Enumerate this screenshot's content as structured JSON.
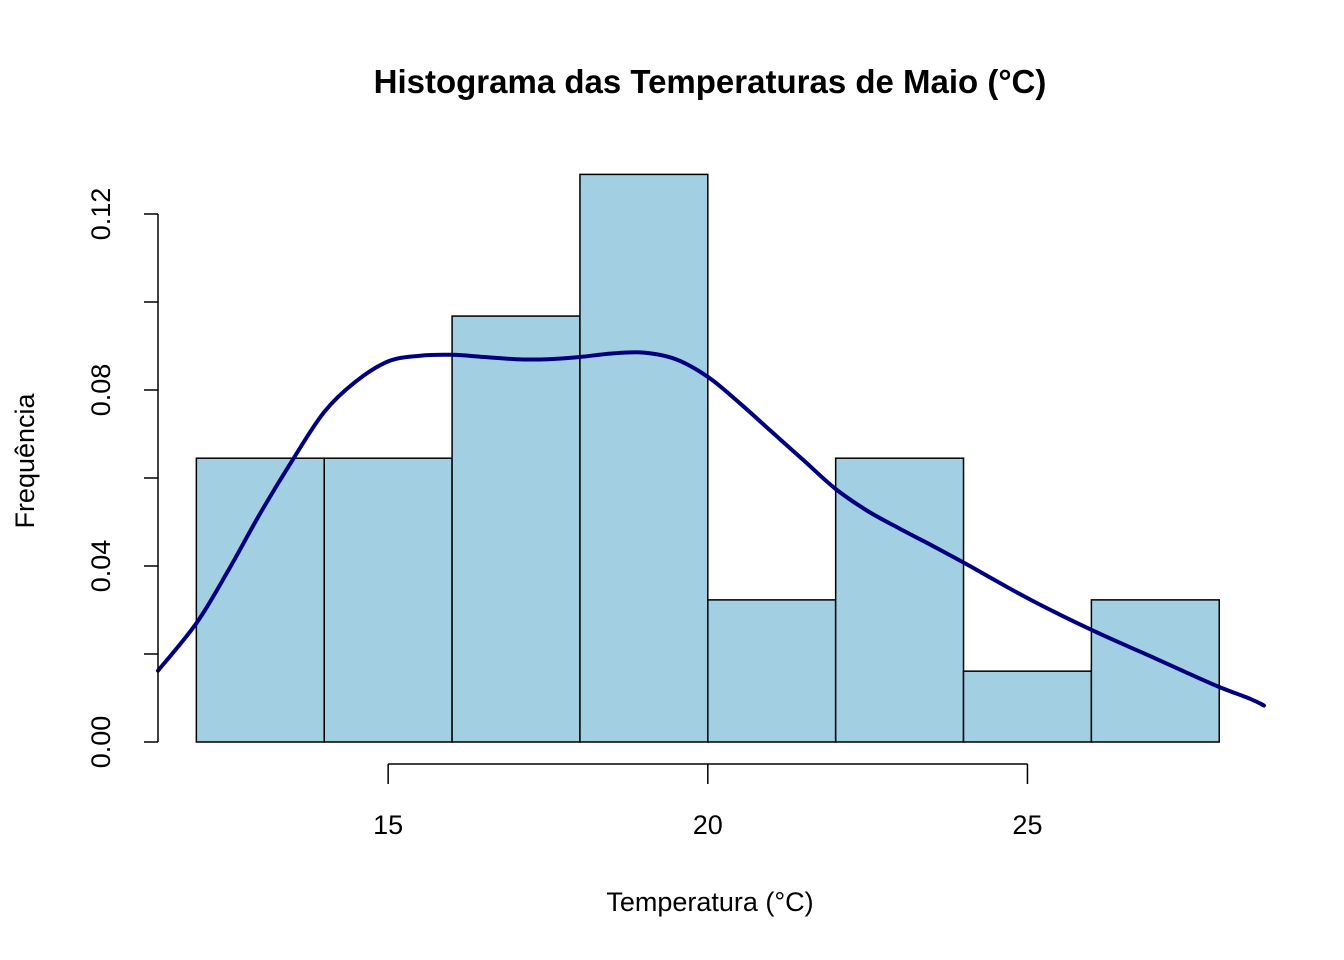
{
  "chart_data": {
    "type": "bar",
    "title": "Histograma das Temperaturas de Maio (°C)",
    "xlabel": "Temperatura (°C)",
    "ylabel": "Frequência",
    "bins": [
      {
        "x0": 12,
        "x1": 14,
        "density": 0.0645
      },
      {
        "x0": 14,
        "x1": 16,
        "density": 0.0645
      },
      {
        "x0": 16,
        "x1": 18,
        "density": 0.0968
      },
      {
        "x0": 18,
        "x1": 20,
        "density": 0.129
      },
      {
        "x0": 20,
        "x1": 22,
        "density": 0.0323
      },
      {
        "x0": 22,
        "x1": 24,
        "density": 0.0645
      },
      {
        "x0": 24,
        "x1": 26,
        "density": 0.0161
      },
      {
        "x0": 26,
        "x1": 28,
        "density": 0.0323
      }
    ],
    "density_curve": {
      "x": [
        11.4,
        12.0,
        12.5,
        13.0,
        13.5,
        14.0,
        14.5,
        15.0,
        15.5,
        16.0,
        16.5,
        17.0,
        17.5,
        18.0,
        18.5,
        19.0,
        19.5,
        20.0,
        20.5,
        21.0,
        21.5,
        22.0,
        22.5,
        23.0,
        23.5,
        24.0,
        24.5,
        25.0,
        25.5,
        26.0,
        26.5,
        27.0,
        27.5,
        28.0,
        28.5,
        28.7
      ],
      "y": [
        0.0162,
        0.027,
        0.039,
        0.052,
        0.064,
        0.075,
        0.082,
        0.0865,
        0.0878,
        0.088,
        0.0875,
        0.087,
        0.087,
        0.0875,
        0.0883,
        0.0885,
        0.087,
        0.083,
        0.077,
        0.0705,
        0.064,
        0.0575,
        0.0525,
        0.0485,
        0.0447,
        0.0408,
        0.0367,
        0.0327,
        0.029,
        0.0255,
        0.0222,
        0.019,
        0.0157,
        0.0125,
        0.0097,
        0.0083
      ]
    },
    "xlim": [
      11.4,
      28.7
    ],
    "ylim": [
      0,
      0.13
    ],
    "x_ticks": [
      15,
      20,
      25
    ],
    "x_tick_labels": [
      "15",
      "20",
      "25"
    ],
    "y_ticks": [
      0.0,
      0.02,
      0.04,
      0.06,
      0.08,
      0.1,
      0.12
    ],
    "y_tick_labels": [
      "0.00",
      "",
      "0.04",
      "",
      "0.08",
      "",
      "0.12"
    ],
    "grid": false,
    "colors": {
      "bar_fill": "#a2cfe2",
      "bar_stroke": "#000000",
      "curve": "#00007f"
    }
  }
}
